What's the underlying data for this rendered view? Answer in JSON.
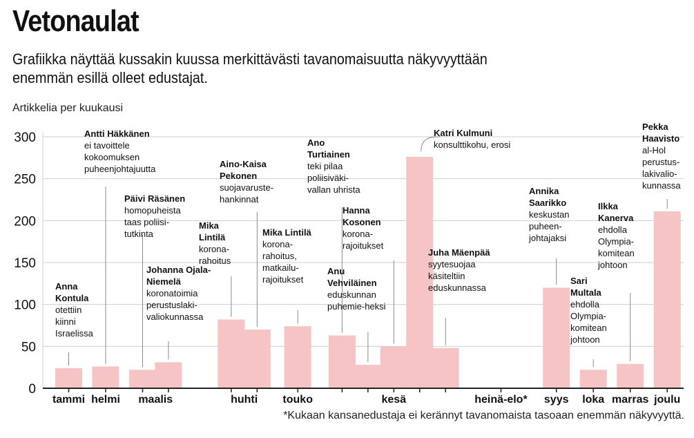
{
  "header": {
    "title": "Vetonaulat",
    "subtitle": "Grafiikka näyttää kussakin kuussa merkittävästi tavanomaisuutta näkyvyyttään enemmän esillä olleet edustajat."
  },
  "footnote": "*Kukaan kansanedustaja ei kerännyt tavanomaista tasoaan enemmän näkyvyyttä.",
  "colors": {
    "bar": "#f6c4c4",
    "gridline": "#cfcfcf",
    "axis": "#222222",
    "text": "#111111"
  },
  "chart_data": {
    "type": "bar",
    "title": "Vetonaulat",
    "ylabel": "Artikkelia per kuukausi",
    "xlabel": "",
    "ylim": [
      0,
      300
    ],
    "yticks": [
      0,
      50,
      100,
      150,
      200,
      250,
      300
    ],
    "grid": true,
    "months": [
      "tammi",
      "helmi",
      "maalis",
      "huhti",
      "touko",
      "kesä",
      "heinä-elo*",
      "syys",
      "loka",
      "marras",
      "joulu"
    ],
    "bars": [
      {
        "month": 0,
        "slot": 0,
        "value": 24,
        "name": "Anna Kontula",
        "desc": "otettiin kiinni Israelissa"
      },
      {
        "month": 1,
        "slot": 1,
        "value": 26,
        "name": "Antti Häkkänen",
        "desc": "ei tavoittele kokoomuksen puheenjohtajuutta"
      },
      {
        "month": 2,
        "slot": 2,
        "value": 22,
        "name": "Päivi Räsänen",
        "desc": "homopuheista taas poliisi-tutkinta"
      },
      {
        "month": 2,
        "slot": 2.7,
        "value": 31,
        "name": "Johanna Ojala-Niemelä",
        "desc": "koronatoimia perustuslaki-valiokunnassa"
      },
      {
        "month": 3,
        "slot": 4.4,
        "value": 82,
        "name": "Mika Lintilä",
        "desc": "korona-rahoitus"
      },
      {
        "month": 3,
        "slot": 5.1,
        "value": 70,
        "name": "Aino-Kaisa Pekonen",
        "desc": "suojavaruste-hankinnat"
      },
      {
        "month": 4,
        "slot": 6.2,
        "value": 74,
        "name": "Mika Lintilä",
        "desc": "korona-rahoitus, matkailu-rajoitukset"
      },
      {
        "month": 5,
        "slot": 7.4,
        "value": 63,
        "name": "Ano Turtiainen",
        "desc": "teki pilaa poliisiväki-vallan uhrista"
      },
      {
        "month": 5,
        "slot": 8.1,
        "value": 28,
        "name": "Anu Vehviläinen",
        "desc": "eduskunnan puhemie-heksi"
      },
      {
        "month": 5,
        "slot": 8.8,
        "value": 50,
        "name": "Hanna Kosonen",
        "desc": "korona-rajoitukset"
      },
      {
        "month": 5,
        "slot": 9.5,
        "value": 276,
        "name": "Katri Kulmuni",
        "desc": "konsulttikohu, erosi"
      },
      {
        "month": 5,
        "slot": 10.2,
        "value": 48,
        "name": "Juha Mäenpää",
        "desc": "syytesuojaa käsiteltiin eduskunnassa"
      },
      {
        "month": 7,
        "slot": 13.2,
        "value": 120,
        "name": "Annika Saarikko",
        "desc": "keskustan puheen-johtajaksi"
      },
      {
        "month": 8,
        "slot": 14.2,
        "value": 22,
        "name": "Sari Multala",
        "desc": "ehdolla Olympia-komitean johtoon"
      },
      {
        "month": 9,
        "slot": 15.2,
        "value": 29,
        "name": "Ilkka Kanerva",
        "desc": "ehdolla Olympia-komitean johtoon"
      },
      {
        "month": 10,
        "slot": 16.2,
        "value": 211,
        "name": "Pekka Haavisto",
        "desc": "al-Hol perustus-lakivalio-kunnassa"
      }
    ]
  }
}
